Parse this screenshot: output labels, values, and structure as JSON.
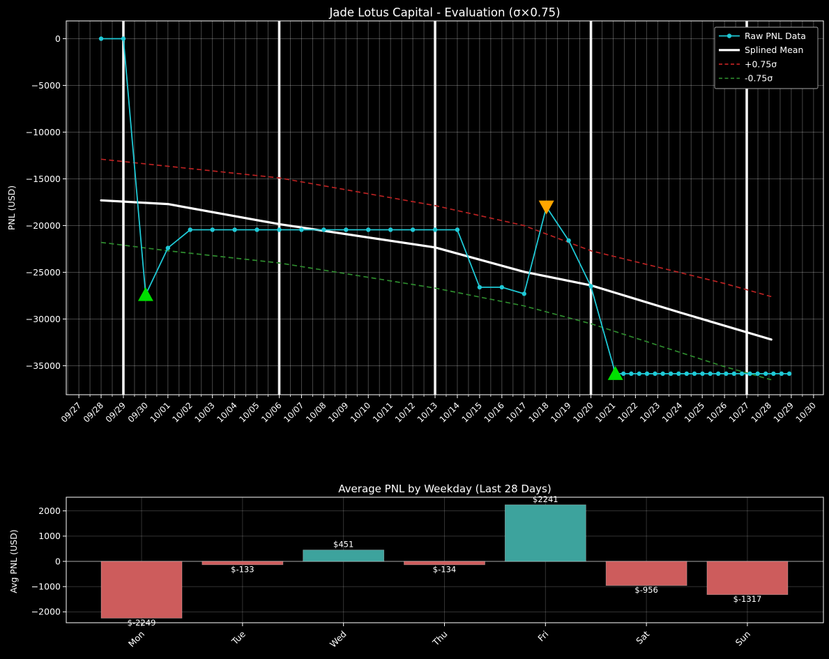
{
  "figure": {
    "background": "#000000",
    "text_color": "#ffffff",
    "grid_color_alpha": 0.3
  },
  "chart_data": [
    {
      "type": "line",
      "title": "Jade Lotus Capital - Evaluation (σ×0.75)",
      "ylabel": "PNL (USD)",
      "x_unit": "days since 09/27",
      "xlim": [
        -0.567,
        33.443
      ],
      "ylim": [
        -38100,
        1900
      ],
      "y_ticks": [
        0,
        -5000,
        -10000,
        -15000,
        -20000,
        -25000,
        -30000,
        -35000
      ],
      "y_tick_labels": [
        "0",
        "−5000",
        "−10000",
        "−15000",
        "−20000",
        "−25000",
        "−30000",
        "−35000"
      ],
      "x_tick_labels": [
        "09/27",
        "09/28",
        "09/29",
        "09/30",
        "10/01",
        "10/02",
        "10/03",
        "10/04",
        "10/05",
        "10/06",
        "10/07",
        "10/08",
        "10/09",
        "10/10",
        "10/11",
        "10/12",
        "10/13",
        "10/14",
        "10/15",
        "10/16",
        "10/17",
        "10/18",
        "10/19",
        "10/20",
        "10/21",
        "10/22",
        "10/23",
        "10/24",
        "10/25",
        "10/26",
        "10/27",
        "10/28",
        "10/29",
        "10/30"
      ],
      "week_boundaries": [
        2,
        9,
        16,
        23,
        30
      ],
      "week_boundary_dates": [
        "09/29",
        "10/06",
        "10/13",
        "10/20",
        "10/27"
      ],
      "series": [
        {
          "name": "Raw PNL Data",
          "color": "#1fc9d6",
          "style": "solid",
          "markers": "dots",
          "width": 1.8,
          "points": [
            [
              1,
              0
            ],
            [
              2,
              0
            ],
            [
              3,
              -27400
            ],
            [
              4,
              -22400
            ],
            [
              5,
              -20450
            ],
            [
              6,
              -20450
            ],
            [
              7,
              -20450
            ],
            [
              8,
              -20450
            ],
            [
              9,
              -20450
            ],
            [
              10,
              -20450
            ],
            [
              11,
              -20450
            ],
            [
              12,
              -20450
            ],
            [
              13,
              -20450
            ],
            [
              14,
              -20450
            ],
            [
              15,
              -20450
            ],
            [
              16,
              -20450
            ],
            [
              17,
              -20450
            ],
            [
              18,
              -26600
            ],
            [
              19,
              -26600
            ],
            [
              20,
              -27300
            ],
            [
              21,
              -18000
            ],
            [
              22,
              -21600
            ],
            [
              23,
              -26500
            ],
            [
              24.1,
              -35850
            ],
            [
              24.46,
              -35850
            ],
            [
              24.81,
              -35850
            ],
            [
              25.17,
              -35850
            ],
            [
              25.52,
              -35850
            ],
            [
              25.88,
              -35850
            ],
            [
              26.23,
              -35850
            ],
            [
              26.59,
              -35850
            ],
            [
              26.94,
              -35850
            ],
            [
              27.3,
              -35850
            ],
            [
              27.65,
              -35850
            ],
            [
              28.01,
              -35850
            ],
            [
              28.36,
              -35850
            ],
            [
              28.72,
              -35850
            ],
            [
              29.07,
              -35850
            ],
            [
              29.43,
              -35850
            ],
            [
              29.78,
              -35850
            ],
            [
              30.14,
              -35850
            ],
            [
              30.49,
              -35850
            ],
            [
              30.85,
              -35850
            ],
            [
              31.2,
              -35850
            ],
            [
              31.56,
              -35850
            ],
            [
              31.91,
              -35850
            ]
          ]
        },
        {
          "name": "Splined Mean",
          "color": "#ffffff",
          "style": "solid",
          "markers": "none",
          "width": 3.2,
          "points": [
            [
              1,
              -17300
            ],
            [
              4,
              -17700
            ],
            [
              9,
              -19850
            ],
            [
              16,
              -22340
            ],
            [
              20,
              -24950
            ],
            [
              23,
              -26400
            ],
            [
              27,
              -29300
            ],
            [
              31.1,
              -32200
            ]
          ]
        },
        {
          "name": "+0.75σ",
          "color": "#bb2222",
          "style": "dashed",
          "markers": "none",
          "width": 1.7,
          "points": [
            [
              1,
              -12900
            ],
            [
              4,
              -13650
            ],
            [
              9,
              -14900
            ],
            [
              16,
              -17860
            ],
            [
              20,
              -20000
            ],
            [
              23,
              -22700
            ],
            [
              29,
              -26200
            ],
            [
              31.1,
              -27600
            ]
          ]
        },
        {
          "name": "-0.75σ",
          "color": "#2e8b2e",
          "style": "dashed",
          "markers": "none",
          "width": 1.7,
          "points": [
            [
              1,
              -21800
            ],
            [
              4,
              -22700
            ],
            [
              9,
              -24000
            ],
            [
              16,
              -26690
            ],
            [
              20,
              -28600
            ],
            [
              23,
              -30500
            ],
            [
              29,
              -35100
            ],
            [
              31.1,
              -36500
            ]
          ]
        }
      ],
      "markers": [
        {
          "day": 3,
          "value": -27400,
          "shape": "triangle-up",
          "color": "#00e000"
        },
        {
          "day": 21,
          "value": -18000,
          "shape": "triangle-down",
          "color": "#ffa500"
        },
        {
          "day": 24.1,
          "value": -35850,
          "shape": "triangle-up",
          "color": "#00e000"
        }
      ],
      "legend": {
        "position": "upper right",
        "items": [
          "Raw PNL Data",
          "Splined Mean",
          "+0.75σ",
          "-0.75σ"
        ]
      }
    },
    {
      "type": "bar",
      "title": "Average PNL by Weekday (Last 28 Days)",
      "ylabel": "Avg PNL (USD)",
      "categories": [
        "Mon",
        "Tue",
        "Wed",
        "Thu",
        "Fri",
        "Sat",
        "Sun"
      ],
      "values": [
        -2249,
        -133,
        451,
        -134,
        2241,
        -956,
        -1317
      ],
      "value_labels": [
        "$-2249",
        "$-133",
        "$451",
        "$-134",
        "$2241",
        "$-956",
        "$-1317"
      ],
      "positive_color": "#3da39d",
      "negative_color": "#cd5c5c",
      "zero_line_color": "#888888",
      "y_ticks": [
        2000,
        1000,
        0,
        -1000,
        -2000
      ],
      "y_tick_labels": [
        "2000",
        "1000",
        "0",
        "−1000",
        "−2000"
      ],
      "xlim": [
        -0.746,
        6.753
      ],
      "ylim": [
        -2431,
        2541
      ]
    }
  ]
}
